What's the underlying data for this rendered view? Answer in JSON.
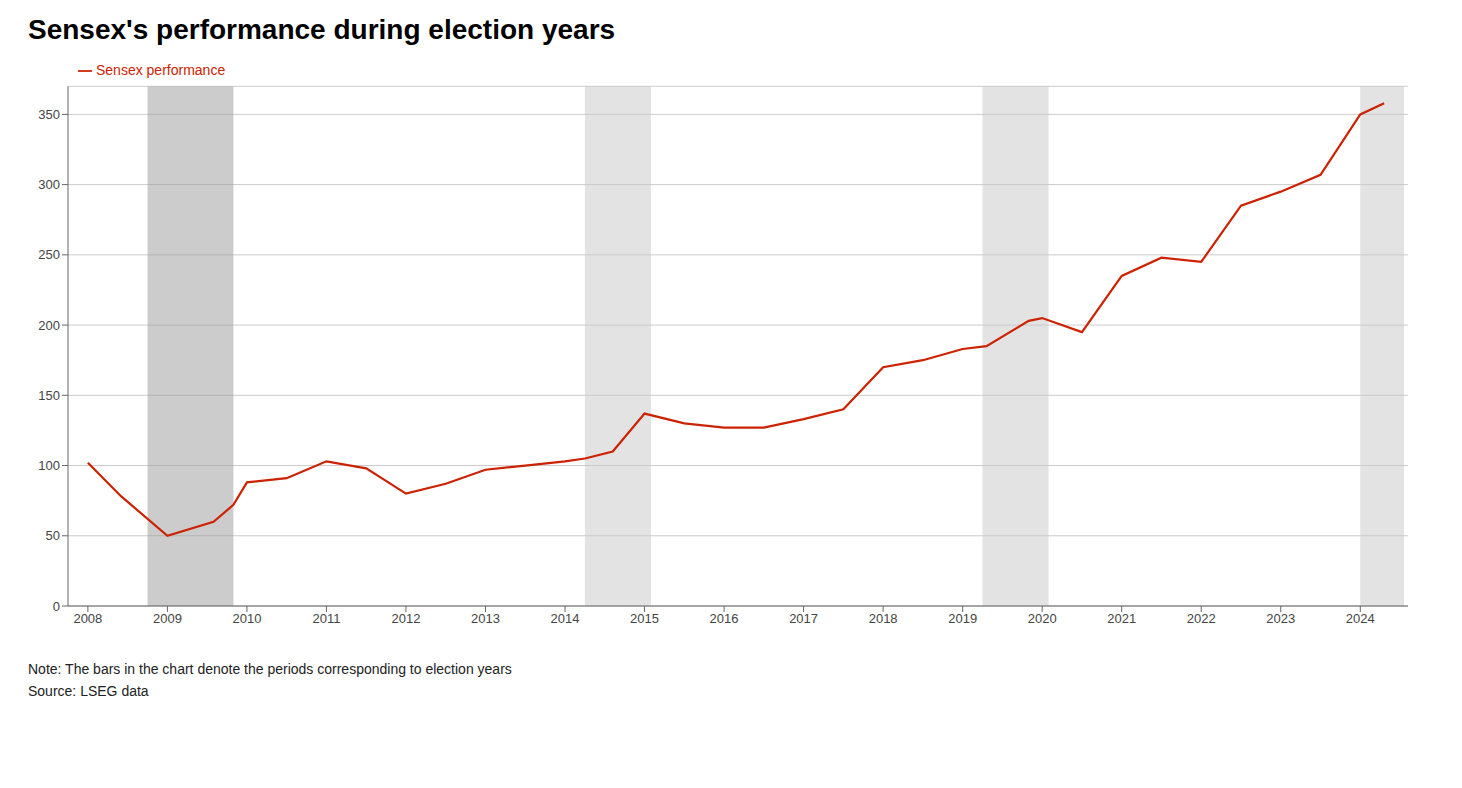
{
  "chart_data": {
    "type": "line",
    "title": "Sensex's performance during election years",
    "x": [
      2008.0,
      2008.42,
      2009.0,
      2009.58,
      2009.83,
      2010.0,
      2010.5,
      2011.0,
      2011.5,
      2012.0,
      2012.5,
      2013.0,
      2013.5,
      2014.0,
      2014.25,
      2014.6,
      2015.0,
      2015.5,
      2016.0,
      2016.5,
      2017.0,
      2017.5,
      2018.0,
      2018.5,
      2019.0,
      2019.3,
      2019.83,
      2020.0,
      2020.5,
      2021.0,
      2021.5,
      2022.0,
      2022.5,
      2023.0,
      2023.5,
      2024.0,
      2024.3
    ],
    "series": [
      {
        "name": "Sensex performance",
        "color": "#CC2200",
        "values": [
          102,
          78,
          50,
          60,
          72,
          88,
          91,
          103,
          98,
          80,
          87,
          97,
          100,
          103,
          105,
          110,
          137,
          130,
          127,
          127,
          133,
          140,
          170,
          175,
          183,
          185,
          203,
          205,
          195,
          235,
          248,
          245,
          285,
          295,
          307,
          350,
          358
        ]
      }
    ],
    "bands": [
      {
        "x_start": 2008.75,
        "x_end": 2009.83,
        "color": "#999999"
      },
      {
        "x_start": 2014.25,
        "x_end": 2015.08,
        "color": "#c8c8c8"
      },
      {
        "x_start": 2019.25,
        "x_end": 2020.08,
        "color": "#c8c8c8"
      },
      {
        "x_start": 2024.0,
        "x_end": 2024.55,
        "color": "#c8c8c8"
      }
    ],
    "xlim": [
      2007.75,
      2024.6
    ],
    "xticks": [
      2008,
      2009,
      2010,
      2011,
      2012,
      2013,
      2014,
      2015,
      2016,
      2017,
      2018,
      2019,
      2020,
      2021,
      2022,
      2023,
      2024
    ],
    "ylim": [
      0,
      370
    ],
    "yticks": [
      0,
      50,
      100,
      150,
      200,
      250,
      300,
      350
    ],
    "grid": true,
    "legend": "upper left",
    "annotations": [
      "Note: The bars in the chart denote the periods corresponding to election years",
      "Source: LSEG data"
    ]
  }
}
